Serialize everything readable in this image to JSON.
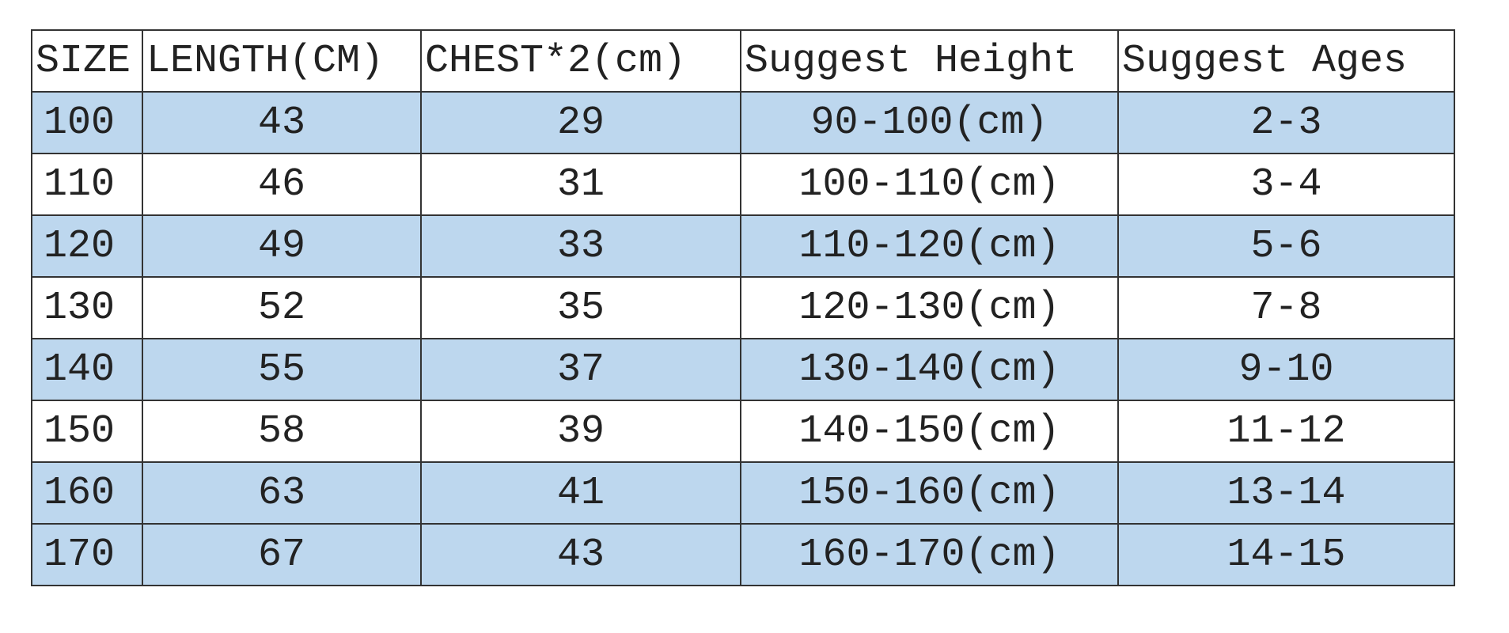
{
  "table": {
    "header": [
      "SIZE",
      "LENGTH(CM)",
      "CHEST*2(cm)",
      "Suggest Height",
      "Suggest Ages"
    ],
    "rows": [
      [
        "100",
        "43",
        "29",
        "90-100(cm)",
        "2-3"
      ],
      [
        "110",
        "46",
        "31",
        "100-110(cm)",
        "3-4"
      ],
      [
        "120",
        "49",
        "33",
        "110-120(cm)",
        "5-6"
      ],
      [
        "130",
        "52",
        "35",
        "120-130(cm)",
        "7-8"
      ],
      [
        "140",
        "55",
        "37",
        "130-140(cm)",
        "9-10"
      ],
      [
        "150",
        "58",
        "39",
        "140-150(cm)",
        "11-12"
      ],
      [
        "160",
        "63",
        "41",
        "150-160(cm)",
        "13-14"
      ],
      [
        "170",
        "67",
        "43",
        "160-170(cm)",
        "14-15"
      ]
    ]
  }
}
